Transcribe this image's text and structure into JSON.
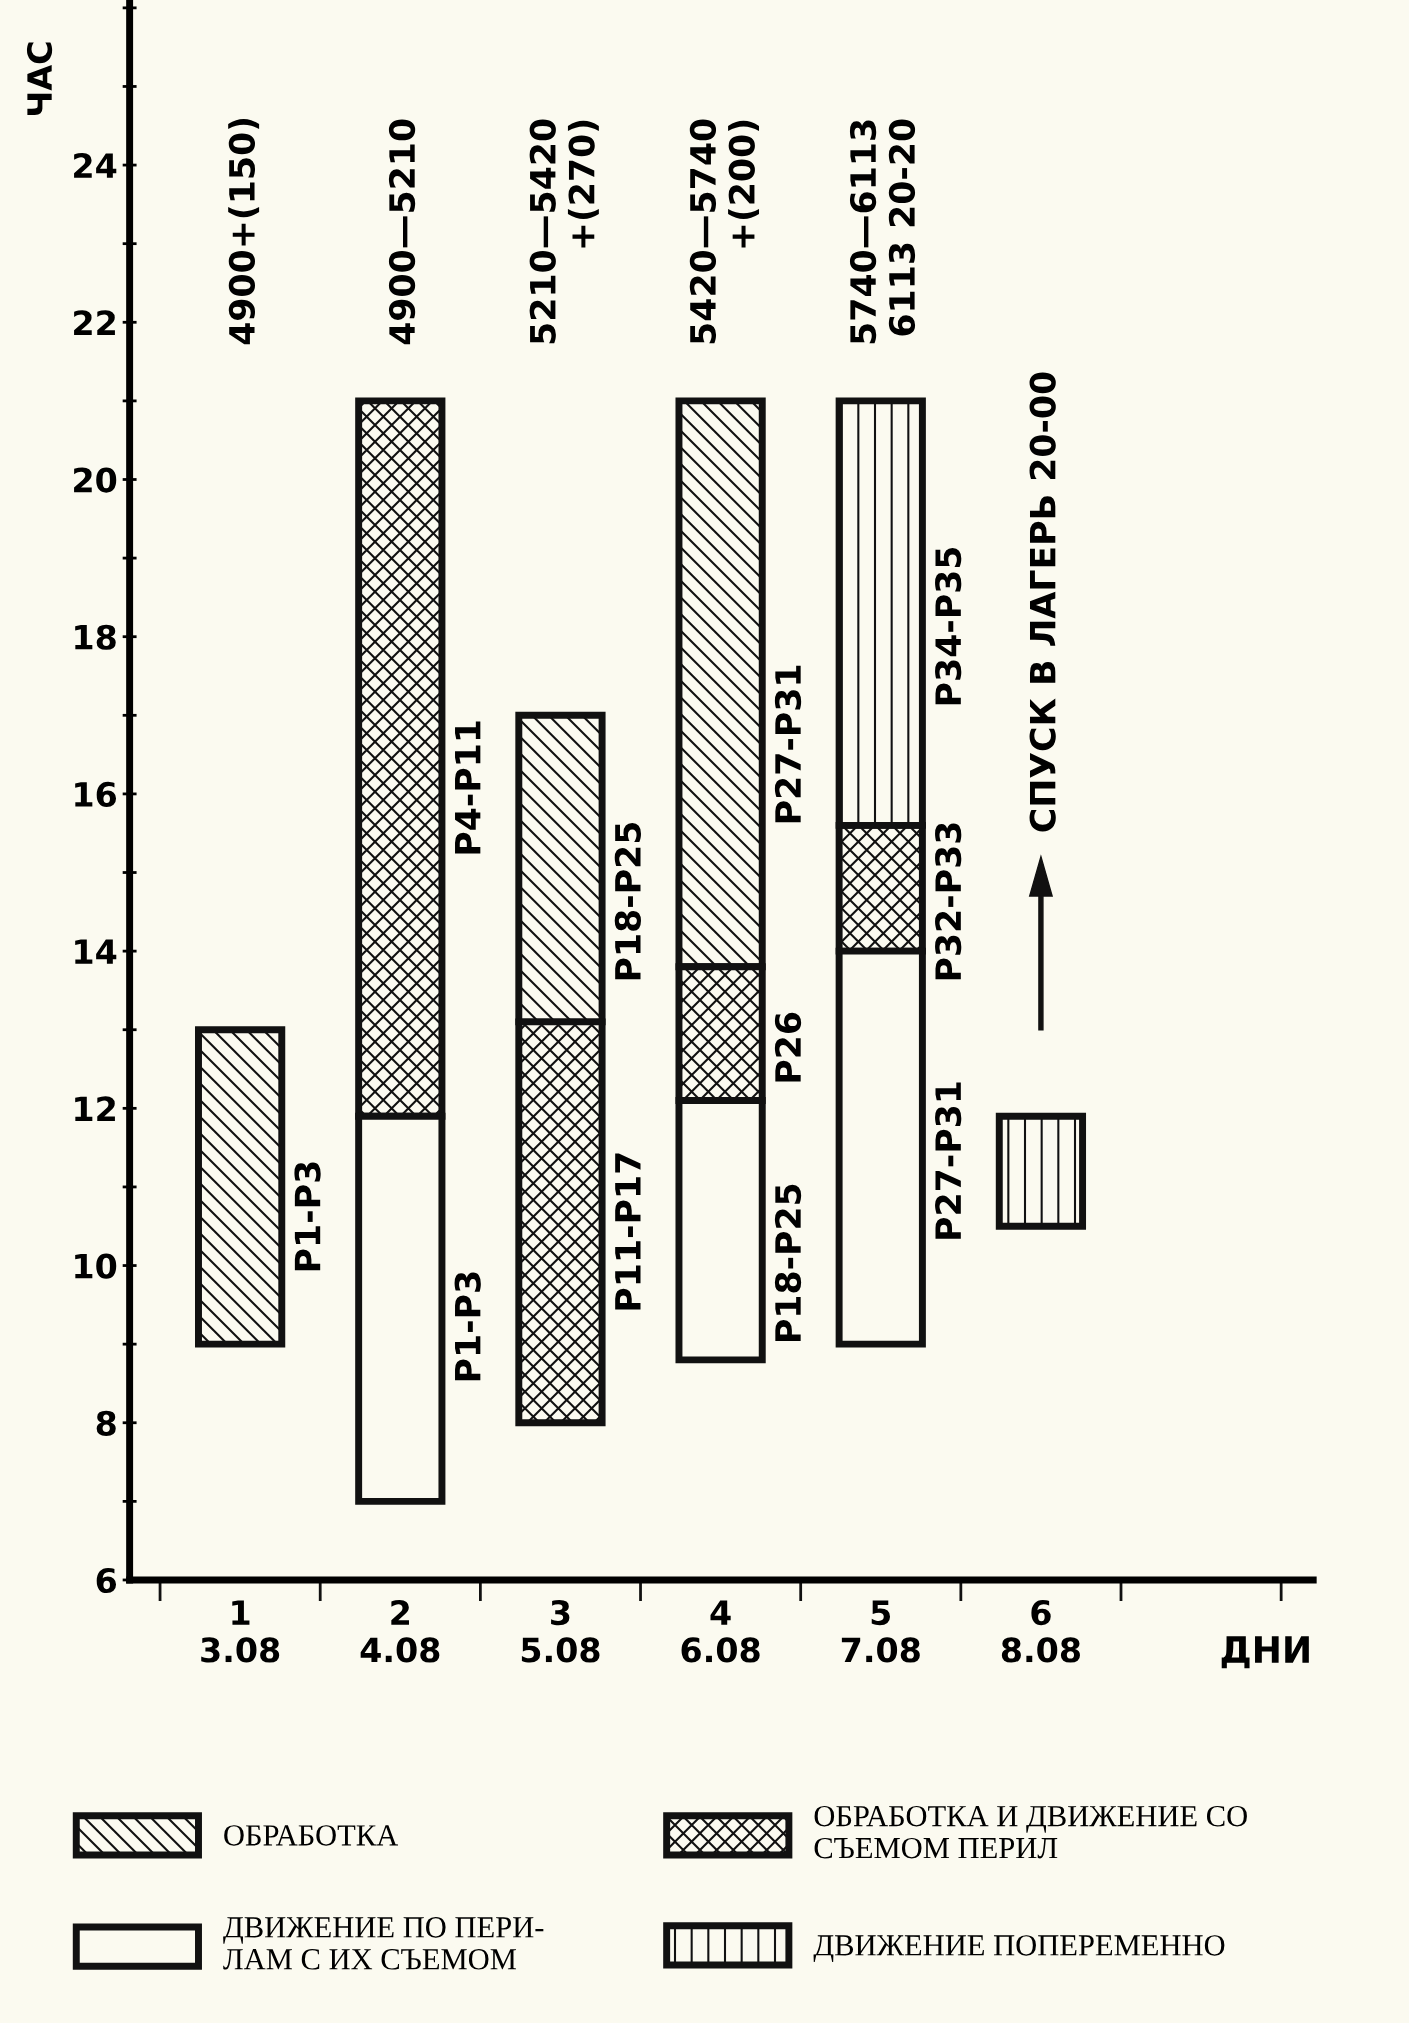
{
  "chart_data": {
    "type": "bar",
    "ylabel": "ЧАС",
    "xlabel": "ДНИ",
    "categories": [
      "1\n3.08",
      "2\n4.08",
      "3\n5.08",
      "4\n6.08",
      "5\n7.08",
      "6\n8.08"
    ],
    "series": [
      {
        "name": "ОБРАБОТКА",
        "color": "#111111",
        "base": [
          9,
          null,
          13.1,
          13.8,
          null,
          null
        ],
        "values": [
          4,
          null,
          3.9,
          7.2,
          null,
          null
        ]
      },
      {
        "name": "ОБРАБОТКА И ДВИЖЕНИЕ СО\nСЪЕМОМ ПЕРИЛ",
        "color": "#111111",
        "base": [
          null,
          11.9,
          8,
          12.1,
          14,
          null
        ],
        "values": [
          null,
          9.1,
          5.1,
          1.7,
          1.6,
          null
        ]
      },
      {
        "name": "ДВИЖЕНИЕ ПО ПЕРИ-\nЛАМ С ИХ СЪЕМОМ",
        "color": "#111111",
        "base": [
          null,
          7,
          null,
          8.8,
          9,
          null
        ],
        "values": [
          null,
          4.9,
          null,
          3.3,
          5,
          null
        ]
      },
      {
        "name": "ДВИЖЕНИЕ ПОПЕРЕМЕННО",
        "color": "#111111",
        "base": [
          null,
          null,
          null,
          null,
          15.6,
          10.5
        ],
        "values": [
          null,
          null,
          null,
          null,
          5.4,
          1.4
        ]
      }
    ],
    "ylim": [
      6,
      26.1
    ],
    "yticks": [
      6,
      8,
      10,
      12,
      14,
      16,
      18,
      20,
      22,
      24
    ],
    "legend": "bottom",
    "grid": false,
    "annotations": [
      "4900+(150)",
      "4900—5210",
      "5210—5420\n+(270)",
      "5420—5740\n+(200)",
      "5740—6113\n6113 20-20",
      "СПУСК В ЛАГЕРЬ 20-00",
      "Р1-Р3",
      "Р4-Р11",
      "Р1-Р3",
      "Р18-Р25",
      "Р11-Р17",
      "Р27-Р31",
      "Р26",
      "Р18-Р25",
      "Р34-Р35",
      "Р32-Р33",
      "Р27-Р31"
    ]
  }
}
